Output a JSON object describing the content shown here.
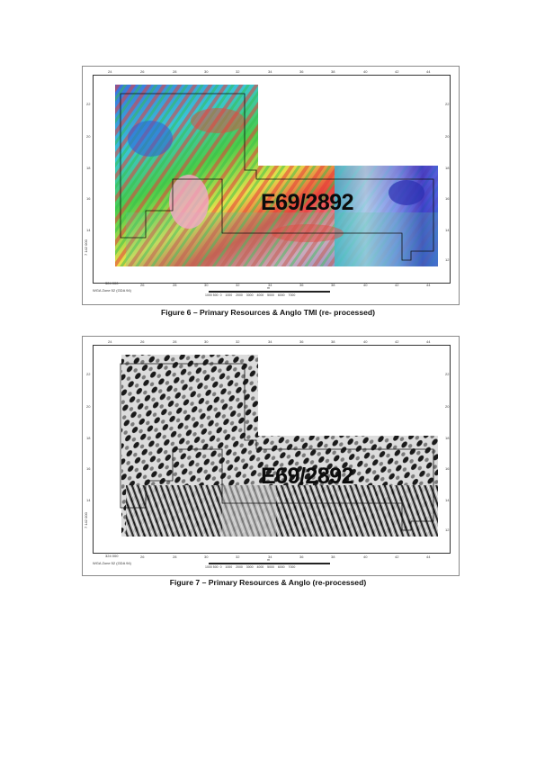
{
  "figures": [
    {
      "id": "fig6",
      "caption": "Figure 6 – Primary Resources & Anglo TMI (re- processed)",
      "tenement_label": "E69/2892",
      "easting_ticks": [
        "24",
        "26",
        "28",
        "30",
        "32",
        "34",
        "36",
        "38",
        "40",
        "42",
        "44"
      ],
      "northing_ticks": [
        "22",
        "20",
        "18",
        "16",
        "14",
        "12"
      ],
      "easting_origin": "324 000",
      "datum_label": "WGA Zone 52 (GDA 94)",
      "northing_origin": "7 142 000",
      "scale_labels": [
        "1000 500",
        "0",
        "1000",
        "2000",
        "3000",
        "4000",
        "5000",
        "6000",
        "7000"
      ],
      "scale_unit": "m",
      "colors": {
        "high": "#e53a3a",
        "mid": "#38c84a",
        "low": "#2f3fd8",
        "peak": "#f4a7c8"
      }
    },
    {
      "id": "fig7",
      "caption": "Figure 7 – Primary Resources & Anglo (re-processed)",
      "tenement_label": "E69/2892",
      "easting_ticks": [
        "24",
        "26",
        "28",
        "30",
        "32",
        "34",
        "36",
        "38",
        "40",
        "42",
        "44"
      ],
      "northing_ticks": [
        "22",
        "20",
        "18",
        "16",
        "14",
        "12"
      ],
      "easting_origin": "324 000",
      "datum_label": "WGA Zone 52 (GDA 94)",
      "northing_origin": "7 142 000",
      "scale_labels": [
        "1000 500",
        "0",
        "1000",
        "2000",
        "3000",
        "4000",
        "5000",
        "6000",
        "7000"
      ],
      "scale_unit": "m",
      "colors": {
        "dark": "#111111",
        "light": "#f2f2f2",
        "mid": "#9a9a9a"
      }
    }
  ]
}
